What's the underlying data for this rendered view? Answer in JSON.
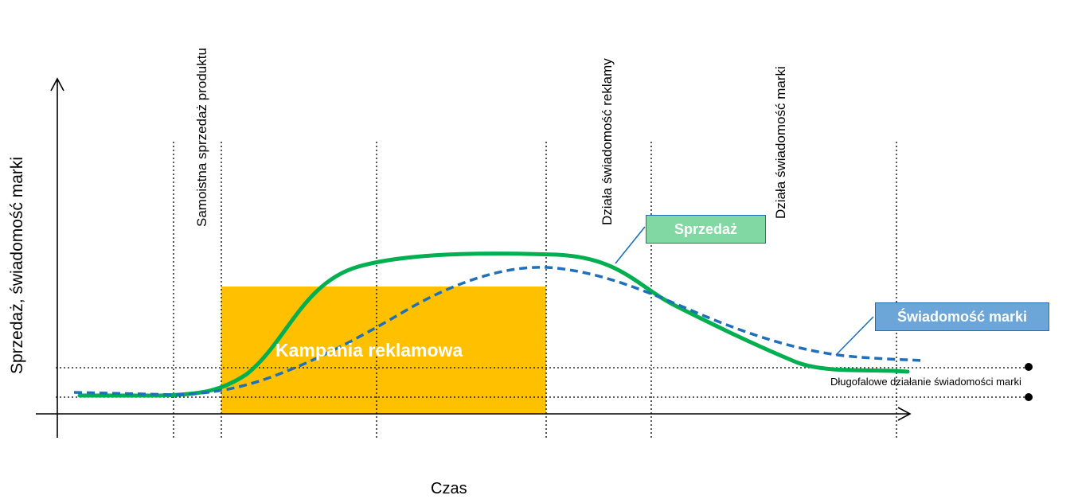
{
  "axes": {
    "y_label": "Sprzedaż, świadomość marki",
    "x_label": "Czas"
  },
  "phases": [
    "Samoistna sprzedaż produktu",
    "Działa świadomość reklamy",
    "Działa świadomość marki"
  ],
  "campaign": {
    "label": "Kampania reklamowa",
    "color": "#FFC000"
  },
  "legend": {
    "sales": {
      "label": "Sprzedaż",
      "color": "#00B050",
      "box_color": "#82D8A3"
    },
    "brand": {
      "label": "Świadomość marki",
      "color": "#1F6FB9",
      "box_color": "#6CA6D8"
    }
  },
  "note": "Długofalowe działanie świadomości marki"
}
